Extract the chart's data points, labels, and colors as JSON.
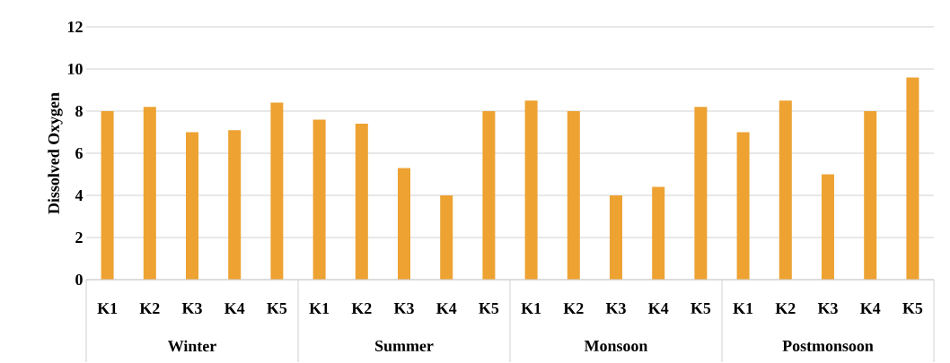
{
  "chart_data": {
    "type": "bar",
    "ylabel": "Dissolved Oxygen",
    "categories": [
      "K1",
      "K2",
      "K3",
      "K4",
      "K5",
      "K1",
      "K2",
      "K3",
      "K4",
      "K5",
      "K1",
      "K2",
      "K3",
      "K4",
      "K5",
      "K1",
      "K2",
      "K3",
      "K4",
      "K5"
    ],
    "values": [
      8,
      8.2,
      7,
      7.1,
      8.4,
      7.6,
      7.4,
      5.3,
      4,
      8,
      8.5,
      8,
      4,
      4.4,
      8.2,
      7,
      8.5,
      5,
      8,
      9.6
    ],
    "color": "#eda232",
    "annotations": [
      "Winter",
      "Summer",
      "Monsoon",
      "Postmonsoon"
    ],
    "ylim": [
      0,
      12
    ],
    "yticks": [
      0,
      2,
      4,
      6,
      8,
      10,
      12
    ],
    "grid": "y"
  }
}
